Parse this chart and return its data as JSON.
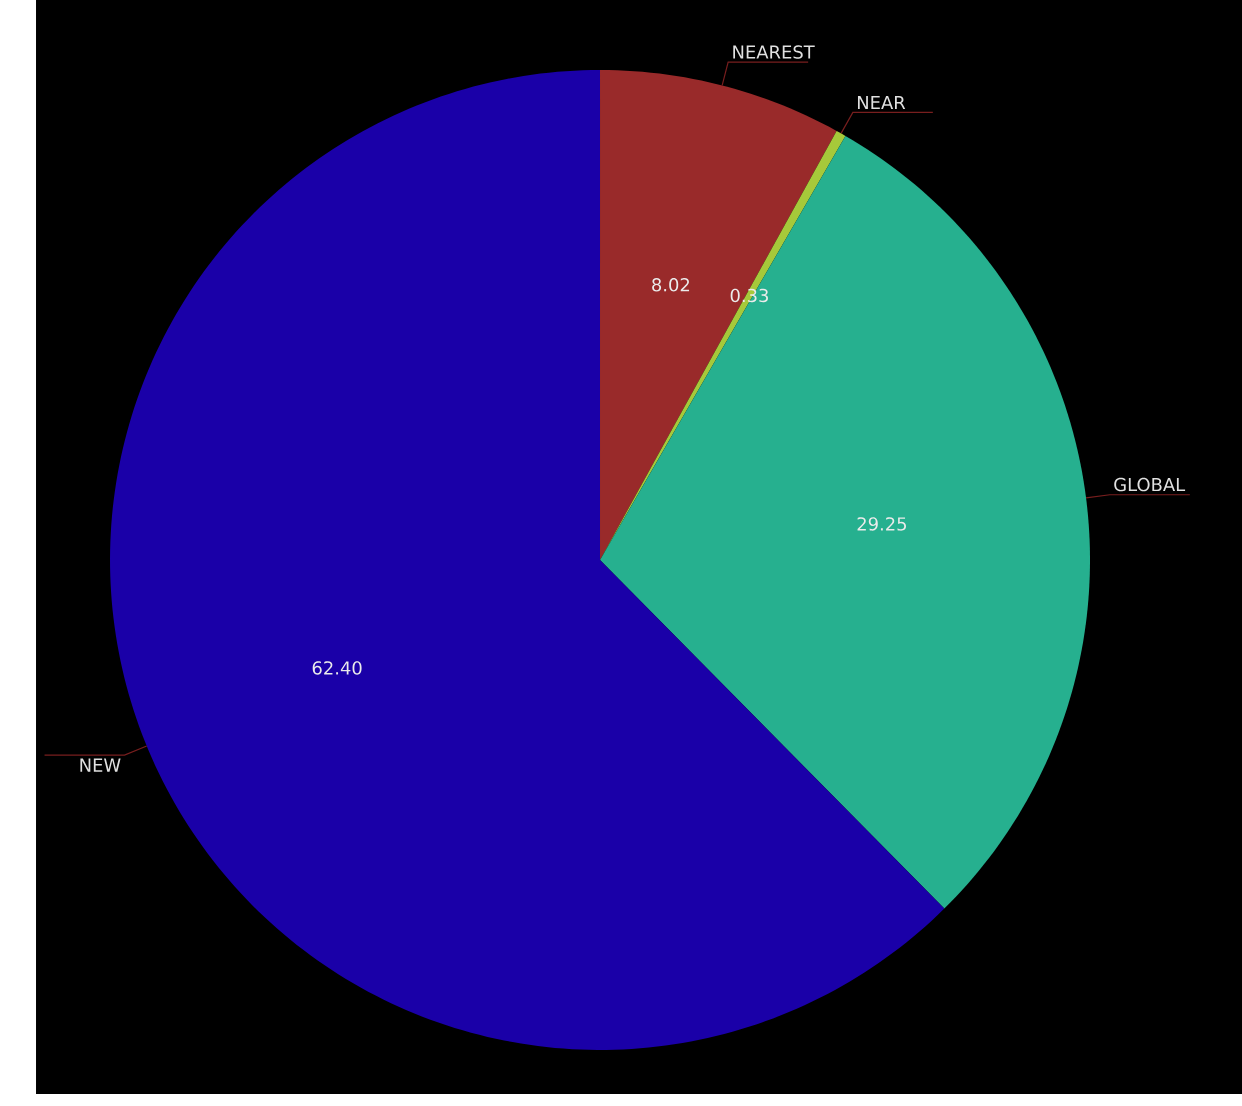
{
  "chart_data": {
    "type": "pie",
    "categories": [
      "NEAREST",
      "NEAR",
      "GLOBAL",
      "NEW"
    ],
    "values": [
      8.02,
      0.33,
      29.25,
      62.4
    ],
    "value_labels": [
      "8.02",
      "0.33",
      "29.25",
      "62.40"
    ],
    "colors": [
      "#992a2a",
      "#a6c93a",
      "#26b08f",
      "#1a00a8"
    ]
  }
}
